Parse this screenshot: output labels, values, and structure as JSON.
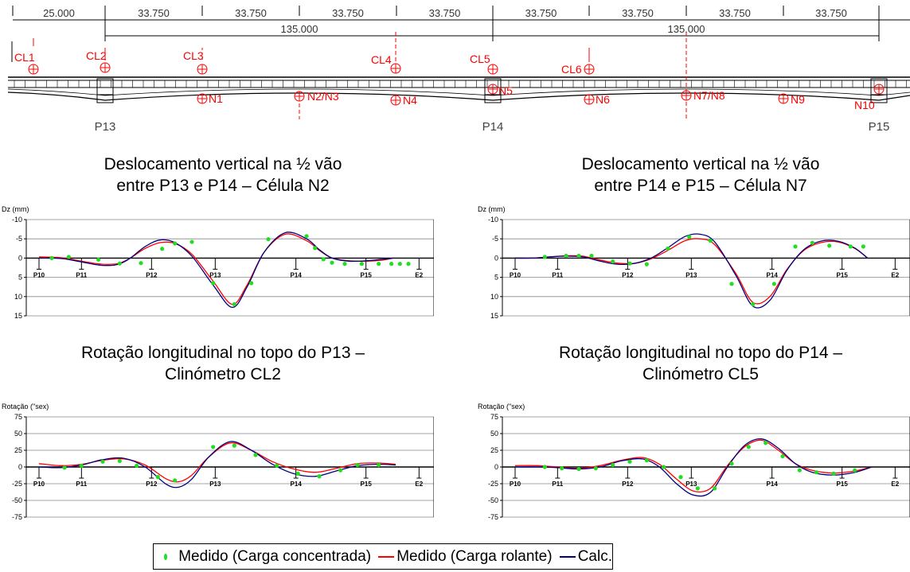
{
  "colors": {
    "measured_concentrated": "#22dd22",
    "measured_rolling": "#ff0000",
    "calculated": "#000080",
    "drawing_red": "#ff0000",
    "drawing_black": "#000000"
  },
  "bridge": {
    "spans": [
      "25.000",
      "33.750",
      "33.750",
      "33.750",
      "33.750",
      "33.750",
      "33.750",
      "33.750",
      "33.750"
    ],
    "span_totals": [
      "135.000",
      "135.000"
    ],
    "clinometers": [
      "CL1",
      "CL2",
      "CL3",
      "CL4",
      "CL5",
      "CL6"
    ],
    "cells": [
      "N1",
      "N2/N3",
      "N4",
      "N5",
      "N6",
      "N7/N8",
      "N9",
      "N10"
    ],
    "piers": [
      "P13",
      "P14",
      "P15"
    ]
  },
  "legend": {
    "measured_concentrated": "Medido (Carga concentrada)",
    "measured_rolling": "Medido (Carga rolante)",
    "calculated": "Calc."
  },
  "chart_data": [
    {
      "type": "line",
      "title": "Deslocamento vertical na ½ vão entre P13 e P14 – Célula N2",
      "title_lines": [
        "Deslocamento vertical na ½ vão",
        "entre P13 e P14 – Célula N2"
      ],
      "ylabel": "Dz (mm)",
      "ylim": [
        -10,
        15
      ],
      "y_inverted": true,
      "yticks": [
        "-10",
        "-5",
        "0",
        "5",
        "10",
        "15"
      ],
      "grid": true,
      "categories": [
        "P10",
        "P11",
        "P12",
        "P13",
        "P14",
        "P15",
        "E2"
      ],
      "series": [
        {
          "name": "Medido (Carga concentrada)",
          "marker": "dot",
          "x": [
            0.3,
            0.7,
            1.4,
            1.9,
            2.4,
            2.9,
            3.2,
            3.6,
            4.1,
            4.6,
            5.0,
            5.4,
            6.3,
            6.5,
            6.7,
            6.9,
            7.2,
            7.6,
            8.0,
            8.3,
            8.5,
            8.7
          ],
          "y": [
            0,
            -0.3,
            0.4,
            1.4,
            1.3,
            -2.4,
            -3.8,
            -4.2,
            6.5,
            12,
            6.5,
            -4.9,
            -5.7,
            -2.6,
            0.3,
            1.2,
            1.5,
            1.5,
            1.5,
            1.5,
            1.5,
            1.5
          ]
        },
        {
          "name": "Medido (Carga rolante)",
          "smooth": true,
          "x": [
            0,
            0.35,
            0.6,
            1.0,
            1.4,
            1.7,
            1.9,
            2.15,
            2.5,
            2.85,
            3.2,
            3.6,
            4.1,
            4.55,
            4.9,
            5.3,
            5.8,
            6.3,
            6.6,
            6.9,
            7.3,
            7.7,
            8.1,
            8.35
          ],
          "y": [
            -0.3,
            -0.2,
            0,
            0.8,
            1.5,
            1.6,
            1.3,
            0,
            -2.5,
            -4.0,
            -3.8,
            -1.0,
            6.0,
            12.0,
            7.0,
            -1.5,
            -6.2,
            -4.5,
            -2.0,
            0.0,
            0.7,
            0.8,
            0.5,
            0
          ]
        },
        {
          "name": "Calc.",
          "smooth": true,
          "x": [
            0,
            0.35,
            0.6,
            1.0,
            1.4,
            1.7,
            1.9,
            2.15,
            2.5,
            2.85,
            3.2,
            3.6,
            4.1,
            4.55,
            4.9,
            5.3,
            5.8,
            6.3,
            6.6,
            6.9,
            7.3,
            7.7,
            8.1,
            8.35
          ],
          "y": [
            0,
            0,
            0.2,
            1.0,
            1.8,
            1.9,
            1.5,
            0,
            -3.0,
            -4.7,
            -4.0,
            -0.5,
            7.0,
            12.8,
            7.5,
            -1.5,
            -6.6,
            -5.0,
            -2.2,
            0.0,
            0.8,
            0.7,
            0.3,
            0
          ]
        }
      ]
    },
    {
      "type": "line",
      "title": "Deslocamento vertical na ½ vão entre P14 e P15 – Célula N7",
      "title_lines": [
        "Deslocamento vertical na ½ vão",
        "entre P14 e P15 – Célula N7"
      ],
      "ylabel": "Dz (mm)",
      "ylim": [
        -10,
        15
      ],
      "y_inverted": true,
      "yticks": [
        "-10",
        "-5",
        "0",
        "5",
        "10",
        "15"
      ],
      "grid": true,
      "categories": [
        "P10",
        "P11",
        "P12",
        "P13",
        "P14",
        "P15",
        "E2"
      ],
      "series": [
        {
          "name": "Medido (Carga concentrada)",
          "marker": "dot",
          "x": [
            0.7,
            1.2,
            1.5,
            1.8,
            2.3,
            2.7,
            3.1,
            3.6,
            4.1,
            4.6,
            5.1,
            5.6,
            6.1,
            6.6,
            7.0,
            7.4,
            7.9,
            8.2
          ],
          "y": [
            -0.3,
            -0.6,
            -0.6,
            -0.6,
            0.9,
            1.4,
            1.6,
            -2.5,
            -5.5,
            -4.5,
            6.7,
            12,
            6.7,
            -3.0,
            -4.0,
            -3.2,
            -3.0,
            -3.0
          ]
        },
        {
          "name": "Medido (Carga rolante)",
          "smooth": true,
          "x": [
            0,
            0.4,
            0.8,
            1.2,
            1.6,
            2.0,
            2.4,
            2.8,
            3.2,
            3.6,
            4.0,
            4.35,
            4.7,
            5.2,
            5.6,
            6.0,
            6.4,
            6.8,
            7.2,
            7.6,
            8.0,
            8.3
          ],
          "y": [
            0,
            0,
            -0.3,
            -0.6,
            -0.5,
            0.5,
            1.3,
            1.4,
            0.2,
            -2.0,
            -4.5,
            -5.0,
            -3.5,
            4.0,
            11.5,
            10.0,
            3.0,
            -2.0,
            -4.0,
            -4.2,
            -2.5,
            0
          ]
        },
        {
          "name": "Calc.",
          "smooth": true,
          "x": [
            0,
            0.4,
            0.8,
            1.2,
            1.6,
            2.0,
            2.4,
            2.8,
            3.2,
            3.6,
            4.0,
            4.35,
            4.7,
            5.2,
            5.6,
            6.0,
            6.4,
            6.8,
            7.2,
            7.6,
            8.0,
            8.3
          ],
          "y": [
            0,
            0,
            -0.3,
            -0.5,
            -0.3,
            0.8,
            1.6,
            1.4,
            0,
            -2.7,
            -5.6,
            -6.2,
            -4.2,
            4.5,
            12.5,
            11.0,
            3.2,
            -2.2,
            -4.4,
            -4.4,
            -2.6,
            0
          ]
        }
      ]
    },
    {
      "type": "line",
      "title": "Rotação longitudinal no topo do P13 – Clinómetro CL2",
      "title_lines": [
        "Rotação longitudinal no topo do P13 –",
        "Clinómetro CL2"
      ],
      "ylabel": "Rotação (\"sex)",
      "ylim": [
        -75,
        75
      ],
      "y_inverted": false,
      "yticks": [
        "75",
        "50",
        "25",
        "0",
        "-25",
        "-50",
        "-75"
      ],
      "grid": true,
      "categories": [
        "P10",
        "P11",
        "P12",
        "P13",
        "P14",
        "P15",
        "E2"
      ],
      "series": [
        {
          "name": "Medido (Carga concentrada)",
          "marker": "dot",
          "x": [
            0.6,
            1.0,
            1.5,
            1.9,
            2.3,
            2.8,
            3.2,
            4.1,
            4.6,
            5.1,
            5.6,
            6.1,
            6.6,
            7.1,
            7.5,
            8.0
          ],
          "y": [
            -1,
            2,
            8,
            9,
            2,
            -15,
            -20,
            30,
            32,
            18,
            2,
            -10,
            -14,
            -5,
            3,
            3
          ]
        },
        {
          "name": "Medido (Carga rolante)",
          "smooth": true,
          "x": [
            0,
            0.5,
            1.0,
            1.5,
            2.0,
            2.5,
            3.0,
            3.3,
            3.6,
            4.0,
            4.5,
            5.0,
            5.5,
            6.0,
            6.5,
            7.0,
            7.5,
            8.0,
            8.4
          ],
          "y": [
            5,
            2,
            4,
            10,
            12,
            3,
            -18,
            -22,
            -12,
            15,
            36,
            25,
            8,
            -3,
            -8,
            -2,
            5,
            6,
            4
          ]
        },
        {
          "name": "Calc.",
          "smooth": true,
          "x": [
            0,
            0.5,
            1.0,
            1.5,
            2.0,
            2.5,
            3.0,
            3.3,
            3.6,
            4.0,
            4.5,
            5.0,
            5.5,
            6.0,
            6.5,
            7.0,
            7.5,
            8.0,
            8.4
          ],
          "y": [
            0,
            -1,
            3,
            11,
            13,
            0,
            -26,
            -30,
            -18,
            15,
            38,
            25,
            4,
            -10,
            -14,
            -6,
            2,
            4,
            3
          ]
        }
      ]
    },
    {
      "type": "line",
      "title": "Rotação longitudinal no topo do P14 – Clinómetro CL5",
      "title_lines": [
        "Rotação longitudinal no topo do P14 –",
        "Clinómetro CL5"
      ],
      "ylabel": "Rotação (\"sex)",
      "ylim": [
        -75,
        75
      ],
      "y_inverted": false,
      "yticks": [
        "75",
        "50",
        "25",
        "0",
        "-25",
        "-50",
        "-75"
      ],
      "grid": true,
      "categories": [
        "P10",
        "P11",
        "P12",
        "P13",
        "P14",
        "P15",
        "E2"
      ],
      "series": [
        {
          "name": "Medido (Carga concentrada)",
          "marker": "dot",
          "x": [
            0.7,
            1.1,
            1.5,
            1.9,
            2.3,
            2.7,
            3.1,
            3.5,
            3.9,
            4.3,
            4.7,
            5.1,
            5.5,
            5.9,
            6.3,
            6.7,
            7.1,
            7.5,
            8.0
          ],
          "y": [
            0,
            -2,
            -3,
            -2,
            3,
            8,
            10,
            0,
            -15,
            -32,
            -32,
            5,
            30,
            36,
            16,
            -5,
            -8,
            -10,
            -5
          ]
        },
        {
          "name": "Medido (Carga rolante)",
          "smooth": true,
          "x": [
            0,
            0.5,
            1.0,
            1.5,
            2.0,
            2.5,
            3.0,
            3.4,
            3.8,
            4.2,
            4.6,
            5.0,
            5.4,
            5.8,
            6.2,
            6.6,
            7.0,
            7.5,
            8.0,
            8.4
          ],
          "y": [
            2,
            2,
            0,
            -2,
            2,
            10,
            14,
            4,
            -18,
            -36,
            -32,
            2,
            30,
            40,
            25,
            5,
            -5,
            -9,
            -6,
            0
          ]
        },
        {
          "name": "Calc.",
          "smooth": true,
          "x": [
            0,
            0.5,
            1.0,
            1.5,
            2.0,
            2.5,
            3.0,
            3.4,
            3.8,
            4.2,
            4.6,
            5.0,
            5.4,
            5.8,
            6.2,
            6.6,
            7.0,
            7.5,
            8.0,
            8.4
          ],
          "y": [
            0,
            0,
            -1,
            -3,
            0,
            9,
            12,
            0,
            -25,
            -42,
            -38,
            0,
            32,
            42,
            28,
            5,
            -8,
            -12,
            -8,
            0
          ]
        }
      ]
    }
  ]
}
